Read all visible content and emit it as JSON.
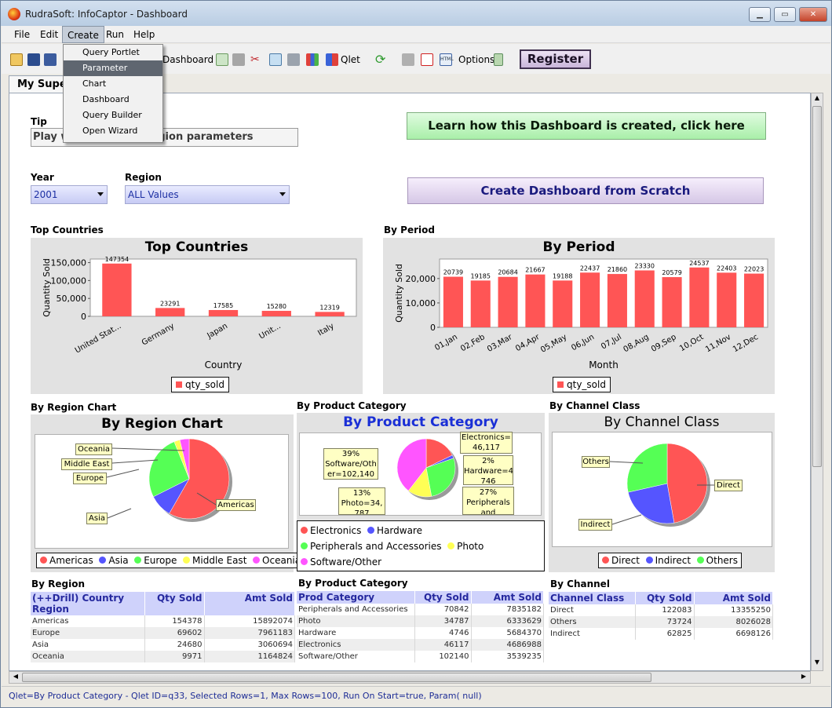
{
  "window": {
    "title": "RudraSoft: InfoCaptor - Dashboard"
  },
  "menubar": {
    "items": [
      "File",
      "Edit",
      "Create",
      "Run",
      "Help"
    ]
  },
  "create_menu": {
    "items": [
      "Query Portlet",
      "Parameter",
      "Chart",
      "Dashboard",
      "Query Builder",
      "Open Wizard"
    ],
    "selected": "Parameter"
  },
  "toolbar": {
    "dashboard_label": "Dashboard",
    "qlet_label": "Qlet",
    "options_label": "Options",
    "register_label": "Register"
  },
  "tabs": {
    "active": "My SuperDashboard"
  },
  "tip": {
    "label": "Tip",
    "text": "Play with Year and Region parameters"
  },
  "params": {
    "year_label": "Year",
    "year_value": "2001",
    "region_label": "Region",
    "region_value": "ALL Values"
  },
  "buttons": {
    "learn": "Learn how this Dashboard is created, click here",
    "scratch": "Create Dashboard from Scratch"
  },
  "sections": {
    "top_countries": "Top Countries",
    "by_period": "By Period",
    "by_region_chart": "By Region Chart",
    "by_product_category": "By Product Category",
    "by_channel_class": "By Channel Class",
    "by_region_table": "By Region",
    "by_product_table": "By Product Category",
    "by_channel_table": "By Channel"
  },
  "chart_data": [
    {
      "type": "bar",
      "title": "Top Countries",
      "xlabel": "Country",
      "ylabel": "Quantity Sold",
      "categories": [
        "United Stat...",
        "Germany",
        "Japan",
        "Unit...",
        "Italy"
      ],
      "values": [
        147354,
        23291,
        17585,
        15280,
        12319
      ],
      "yticks": [
        "0",
        "50,000",
        "100,000",
        "150,000"
      ],
      "ylim": [
        0,
        160000
      ],
      "series": [
        {
          "name": "qty_sold",
          "values": [
            147354,
            23291,
            17585,
            15280,
            12319
          ]
        }
      ],
      "color": "#ff5555"
    },
    {
      "type": "bar",
      "title": "By Period",
      "xlabel": "Month",
      "ylabel": "Quantity Sold",
      "categories": [
        "01,Jan",
        "02,Feb",
        "03,Mar",
        "04,Apr",
        "05,May",
        "06,Jun",
        "07,Jul",
        "08,Aug",
        "09,Sep",
        "10,Oct",
        "11,Nov",
        "12,Dec"
      ],
      "values": [
        20739,
        19185,
        20684,
        21667,
        19188,
        22437,
        21860,
        23330,
        20579,
        24537,
        22403,
        22023
      ],
      "yticks": [
        "0",
        "10,000",
        "20,000"
      ],
      "ylim": [
        0,
        28000
      ],
      "series": [
        {
          "name": "qty_sold",
          "values": [
            20739,
            19185,
            20684,
            21667,
            19188,
            22437,
            21860,
            23330,
            20579,
            24537,
            22403,
            22023
          ]
        }
      ],
      "color": "#ff5555"
    },
    {
      "type": "pie",
      "title": "By Region Chart",
      "labels": [
        "Americas",
        "Asia",
        "Europe",
        "Middle East",
        "Oceania"
      ],
      "values": [
        154378,
        24680,
        69602,
        6220,
        9971
      ],
      "colors": [
        "#ff5555",
        "#5555ff",
        "#55ff55",
        "#ffff55",
        "#ff55ff"
      ]
    },
    {
      "type": "pie",
      "title": "By Product Category",
      "labels": [
        "Electronics",
        "Hardware",
        "Peripherals and Accessories",
        "Photo",
        "Software/Other"
      ],
      "values": [
        46117,
        4746,
        70842,
        34787,
        102140
      ],
      "colors": [
        "#ff5555",
        "#5555ff",
        "#55ff55",
        "#ffff55",
        "#ff55ff"
      ],
      "callouts": [
        "Electronics= 46,117",
        "2% Hardware=4, 746",
        "27% Peripherals and",
        "13% Photo=34, 787",
        "39% Software/Oth er=102,140"
      ]
    },
    {
      "type": "pie",
      "title": "By Channel Class",
      "labels": [
        "Direct",
        "Indirect",
        "Others"
      ],
      "values": [
        122083,
        62825,
        73724
      ],
      "colors": [
        "#ff5555",
        "#5555ff",
        "#55ff55"
      ]
    }
  ],
  "region_table": {
    "headers": [
      "(++Drill) Country Region",
      "Qty Sold",
      "Amt Sold"
    ],
    "rows": [
      [
        "Americas",
        "154378",
        "15892074"
      ],
      [
        "Europe",
        "69602",
        "7961183"
      ],
      [
        "Asia",
        "24680",
        "3060694"
      ],
      [
        "Oceania",
        "9971",
        "1164824"
      ]
    ]
  },
  "product_table": {
    "headers": [
      "Prod Category",
      "Qty Sold",
      "Amt Sold"
    ],
    "rows": [
      [
        "Peripherals and Accessories",
        "70842",
        "7835182"
      ],
      [
        "Photo",
        "34787",
        "6333629"
      ],
      [
        "Hardware",
        "4746",
        "5684370"
      ],
      [
        "Electronics",
        "46117",
        "4686988"
      ],
      [
        "Software/Other",
        "102140",
        "3539235"
      ]
    ]
  },
  "channel_table": {
    "headers": [
      "Channel Class",
      "Qty Sold",
      "Amt Sold"
    ],
    "rows": [
      [
        "Direct",
        "122083",
        "13355250"
      ],
      [
        "Others",
        "73724",
        "8026028"
      ],
      [
        "Indirect",
        "62825",
        "6698126"
      ]
    ]
  },
  "status": {
    "text": "Qlet=By Product Category - Qlet ID=q33, Selected Rows=1, Max Rows=100, Run On Start=true, Param( null)"
  }
}
